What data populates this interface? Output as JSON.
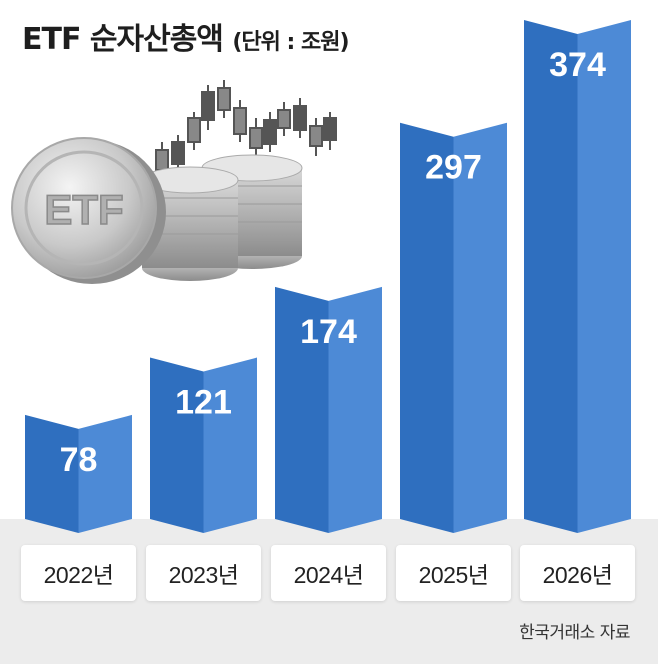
{
  "title": "ETF 순자산총액",
  "unit": "(단위 : 조원)",
  "source": "한국거래소 자료",
  "colors": {
    "bar_light": "#4d8ad6",
    "bar_dark": "#2f6fbf",
    "axis_band": "#ececec"
  },
  "illustration": "etf-coin-stack-icon",
  "chart_data": {
    "type": "bar",
    "categories": [
      "2022년",
      "2023년",
      "2024년",
      "2025년",
      "2026년"
    ],
    "values": [
      78,
      121,
      174,
      297,
      374
    ],
    "title": "ETF 순자산총액",
    "ylabel": "",
    "unit": "조원",
    "ylim": [
      0,
      374
    ]
  }
}
